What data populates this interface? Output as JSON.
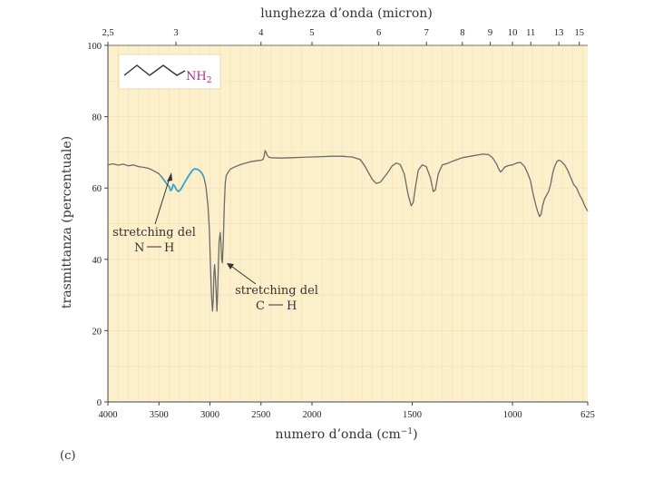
{
  "chart_data": {
    "type": "line",
    "top_xlabel": "lunghezza d’onda (micron)",
    "top_ticks": [
      "2,5",
      "3",
      "4",
      "5",
      "6",
      "7",
      "8",
      "9",
      "10",
      "11",
      "13",
      "15"
    ],
    "top_tick_wavenumbers": [
      4000,
      3333,
      2500,
      2000,
      1667,
      1429,
      1250,
      1111,
      1000,
      909,
      769,
      667
    ],
    "xlabel": "numero d’onda (cm",
    "xlabel_exp": "−1",
    "xlabel_close": ")",
    "x_ticks": [
      4000,
      3500,
      3000,
      2500,
      2000,
      1500,
      1000,
      625
    ],
    "x_tick_labels": [
      "4000",
      "3500",
      "3000",
      "2500",
      "2000",
      "1500",
      "1000",
      "625"
    ],
    "xlim": [
      4000,
      625
    ],
    "x_scale": "wavenumber axis, 1:2 scale change at 2000 cm-1",
    "ylabel": "trasmittanza (percentuale)",
    "y_ticks": [
      0,
      20,
      40,
      60,
      80,
      100
    ],
    "y_tick_labels": [
      "0",
      "20",
      "40",
      "60",
      "80",
      "100"
    ],
    "ylim": [
      0,
      100
    ],
    "background_color": "#fcefcc",
    "grid_color": "#f4e2b0",
    "line_color": "#6b6b6b",
    "highlight_color": "#3aa3cc",
    "molecule_label": "NH",
    "molecule_label_sub": "2",
    "molecule_color": "#b8298f",
    "annotations": [
      {
        "line1": "stretching del",
        "line2_a": "N",
        "line2_b": "H"
      },
      {
        "line1": "stretching del",
        "line2_a": "C",
        "line2_b": "H"
      }
    ],
    "panel_label": "(c)",
    "series": [
      {
        "points": [
          [
            4000,
            66.5
          ],
          [
            3950,
            66.8
          ],
          [
            3900,
            66.4
          ],
          [
            3850,
            66.7
          ],
          [
            3800,
            66.2
          ],
          [
            3750,
            66.5
          ],
          [
            3700,
            66.0
          ],
          [
            3650,
            65.8
          ],
          [
            3600,
            65.5
          ],
          [
            3550,
            64.8
          ],
          [
            3500,
            64.0
          ],
          [
            3470,
            63.0
          ],
          [
            3440,
            61.8
          ],
          [
            3420,
            61.0
          ],
          [
            3400,
            60.4
          ],
          [
            3385,
            59.3
          ],
          [
            3375,
            59.6
          ],
          [
            3360,
            61.0
          ],
          [
            3345,
            60.5
          ],
          [
            3330,
            59.6
          ],
          [
            3310,
            59.0
          ],
          [
            3290,
            59.5
          ],
          [
            3270,
            60.4
          ],
          [
            3250,
            61.5
          ],
          [
            3230,
            62.4
          ],
          [
            3210,
            63.4
          ],
          [
            3190,
            64.2
          ],
          [
            3170,
            65.0
          ],
          [
            3150,
            65.4
          ],
          [
            3120,
            65.2
          ],
          [
            3100,
            64.8
          ],
          [
            3080,
            64.2
          ],
          [
            3060,
            63.0
          ],
          [
            3040,
            60.5
          ],
          [
            3020,
            55.0
          ],
          [
            3005,
            48.0
          ],
          [
            2995,
            38.0
          ],
          [
            2985,
            30.0
          ],
          [
            2975,
            25.5
          ],
          [
            2968,
            28.5
          ],
          [
            2962,
            35.5
          ],
          [
            2955,
            38.5
          ],
          [
            2948,
            35.5
          ],
          [
            2940,
            31.0
          ],
          [
            2932,
            25.5
          ],
          [
            2925,
            30.0
          ],
          [
            2918,
            38.0
          ],
          [
            2910,
            45.0
          ],
          [
            2900,
            47.5
          ],
          [
            2892,
            44.5
          ],
          [
            2885,
            40.0
          ],
          [
            2878,
            39.0
          ],
          [
            2870,
            44.0
          ],
          [
            2860,
            55.0
          ],
          [
            2850,
            61.5
          ],
          [
            2840,
            63.5
          ],
          [
            2820,
            64.5
          ],
          [
            2800,
            65.3
          ],
          [
            2750,
            66.0
          ],
          [
            2700,
            66.6
          ],
          [
            2650,
            67.0
          ],
          [
            2600,
            67.4
          ],
          [
            2550,
            67.6
          ],
          [
            2500,
            67.8
          ],
          [
            2480,
            68.0
          ],
          [
            2470,
            68.8
          ],
          [
            2460,
            70.5
          ],
          [
            2450,
            70.0
          ],
          [
            2440,
            69.2
          ],
          [
            2420,
            68.6
          ],
          [
            2400,
            68.5
          ],
          [
            2300,
            68.4
          ],
          [
            2200,
            68.5
          ],
          [
            2100,
            68.6
          ],
          [
            2000,
            68.7
          ],
          [
            1950,
            68.8
          ],
          [
            1900,
            68.9
          ],
          [
            1850,
            68.9
          ],
          [
            1800,
            68.7
          ],
          [
            1760,
            68.0
          ],
          [
            1740,
            66.5
          ],
          [
            1720,
            64.5
          ],
          [
            1700,
            62.5
          ],
          [
            1680,
            61.3
          ],
          [
            1660,
            61.6
          ],
          [
            1640,
            63.0
          ],
          [
            1620,
            64.5
          ],
          [
            1600,
            66.2
          ],
          [
            1580,
            67.0
          ],
          [
            1560,
            66.6
          ],
          [
            1540,
            64.0
          ],
          [
            1520,
            58.0
          ],
          [
            1505,
            55.0
          ],
          [
            1495,
            56.0
          ],
          [
            1485,
            60.0
          ],
          [
            1470,
            65.0
          ],
          [
            1450,
            66.5
          ],
          [
            1430,
            66.0
          ],
          [
            1410,
            63.0
          ],
          [
            1395,
            59.0
          ],
          [
            1385,
            59.5
          ],
          [
            1370,
            64.0
          ],
          [
            1350,
            66.5
          ],
          [
            1320,
            67.0
          ],
          [
            1300,
            67.5
          ],
          [
            1250,
            68.5
          ],
          [
            1200,
            69.0
          ],
          [
            1150,
            69.5
          ],
          [
            1120,
            69.4
          ],
          [
            1100,
            68.5
          ],
          [
            1080,
            66.8
          ],
          [
            1070,
            65.5
          ],
          [
            1060,
            64.5
          ],
          [
            1050,
            65.0
          ],
          [
            1040,
            65.8
          ],
          [
            1020,
            66.3
          ],
          [
            1000,
            66.5
          ],
          [
            980,
            67.0
          ],
          [
            960,
            67.2
          ],
          [
            940,
            66.0
          ],
          [
            925,
            64.2
          ],
          [
            910,
            62.0
          ],
          [
            900,
            59.0
          ],
          [
            885,
            55.5
          ],
          [
            875,
            53.5
          ],
          [
            865,
            52.0
          ],
          [
            858,
            52.6
          ],
          [
            850,
            55.0
          ],
          [
            840,
            57.0
          ],
          [
            830,
            58.0
          ],
          [
            820,
            59.0
          ],
          [
            810,
            61.0
          ],
          [
            800,
            64.0
          ],
          [
            790,
            66.0
          ],
          [
            780,
            67.3
          ],
          [
            770,
            67.8
          ],
          [
            760,
            67.6
          ],
          [
            740,
            66.5
          ],
          [
            725,
            65.0
          ],
          [
            710,
            63.0
          ],
          [
            695,
            61.0
          ],
          [
            680,
            60.0
          ],
          [
            665,
            58.0
          ],
          [
            650,
            56.5
          ],
          [
            640,
            55.0
          ],
          [
            625,
            53.5
          ]
        ]
      }
    ],
    "highlight_range": [
      3470,
      3060
    ]
  }
}
